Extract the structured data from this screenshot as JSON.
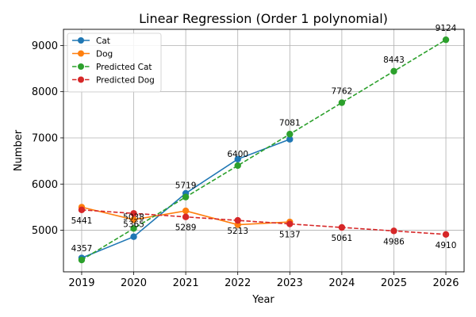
{
  "chart_data": {
    "type": "line",
    "title": "Linear Regression (Order 1 polynomial)",
    "xlabel": "Year",
    "ylabel": "Number",
    "x": [
      2019,
      2020,
      2021,
      2022,
      2023,
      2024,
      2025,
      2026
    ],
    "xlim": [
      2018.65,
      2026.35
    ],
    "ylim": [
      4100,
      9350
    ],
    "yticks": [
      5000,
      6000,
      7000,
      8000,
      9000
    ],
    "grid": true,
    "legend_position": "upper-left",
    "series": [
      {
        "name": "Cat",
        "color": "#1f77b4",
        "style": "solid",
        "points": [
          [
            2019,
            4400
          ],
          [
            2020,
            4860
          ],
          [
            2021,
            5800
          ],
          [
            2022,
            6540
          ],
          [
            2023,
            6970
          ]
        ]
      },
      {
        "name": "Dog",
        "color": "#ff7f0e",
        "style": "solid",
        "points": [
          [
            2019,
            5500
          ],
          [
            2020,
            5230
          ],
          [
            2021,
            5420
          ],
          [
            2022,
            5120
          ],
          [
            2023,
            5180
          ]
        ]
      },
      {
        "name": "Predicted Cat",
        "color": "#2ca02c",
        "style": "dashed",
        "points": [
          [
            2019,
            4357
          ],
          [
            2020,
            5038
          ],
          [
            2021,
            5719
          ],
          [
            2022,
            6400
          ],
          [
            2023,
            7081
          ],
          [
            2024,
            7762
          ],
          [
            2025,
            8443
          ],
          [
            2026,
            9124
          ]
        ],
        "label_offset": "above"
      },
      {
        "name": "Predicted Dog",
        "color": "#d62728",
        "style": "dashed",
        "points": [
          [
            2019,
            5441
          ],
          [
            2020,
            5365
          ],
          [
            2021,
            5289
          ],
          [
            2022,
            5213
          ],
          [
            2023,
            5137
          ],
          [
            2024,
            5061
          ],
          [
            2025,
            4986
          ],
          [
            2026,
            4910
          ]
        ],
        "label_offset": "below"
      }
    ]
  }
}
